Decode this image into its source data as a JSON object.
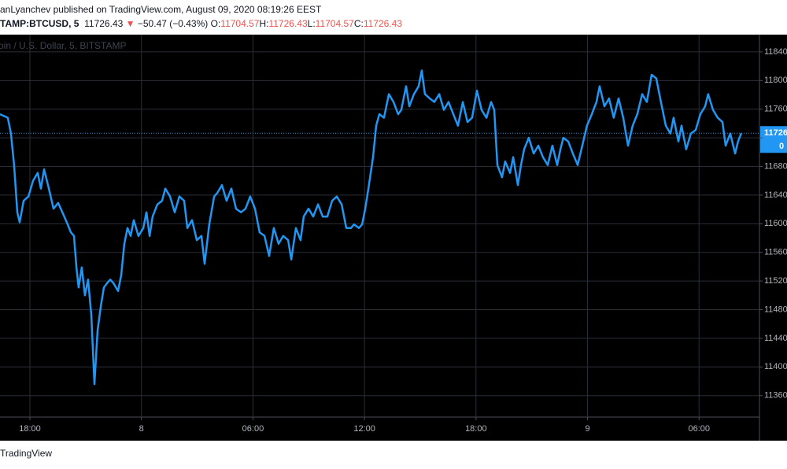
{
  "chart_data": {
    "type": "line",
    "publisher_line": "anLyanchev published on TradingView.com, August 09, 2020 08:19:26 EEST",
    "symbol": "TAMP:BTCUSD, 5",
    "last": "11726.43",
    "direction": "▼",
    "change": "−50.47 (−0.43%)",
    "ohlc": [
      {
        "label": "O:",
        "value": "11704.57"
      },
      {
        "label": "H:",
        "value": "11726.43"
      },
      {
        "label": "L:",
        "value": "11704.57"
      },
      {
        "label": "C:",
        "value": "11726.43"
      }
    ],
    "watermark": "oin / U.S. Dollar, 5, BITSTAMP",
    "countdown": "0",
    "footer": "TradingView",
    "xlim": [
      -1.61,
      39.25
    ],
    "ylim": [
      11330,
      11863
    ],
    "xticks": [
      {
        "value": 0,
        "label": "18:00"
      },
      {
        "value": 6,
        "label": "8"
      },
      {
        "value": 12,
        "label": "06:00"
      },
      {
        "value": 18,
        "label": "12:00"
      },
      {
        "value": 24,
        "label": "18:00"
      },
      {
        "value": 30,
        "label": "9"
      },
      {
        "value": 36,
        "label": "06:00"
      }
    ],
    "yticks": [
      11360,
      11400,
      11440,
      11480,
      11520,
      11560,
      11600,
      11640,
      11680,
      11720,
      11760,
      11800,
      11840
    ],
    "grid": true,
    "series": [
      {
        "color": "#2196f3",
        "x": [
          -1.61,
          -1.19,
          -1.02,
          -0.85,
          -0.68,
          -0.55,
          -0.34,
          -0.08,
          0.17,
          0.42,
          0.59,
          0.76,
          1.02,
          1.27,
          1.52,
          1.78,
          2.03,
          2.2,
          2.37,
          2.5,
          2.62,
          2.79,
          2.96,
          3.13,
          3.3,
          3.47,
          3.64,
          3.81,
          3.98,
          4.15,
          4.32,
          4.49,
          4.74,
          4.91,
          5.08,
          5.25,
          5.42,
          5.59,
          5.84,
          6.1,
          6.27,
          6.44,
          6.6,
          6.86,
          7.11,
          7.28,
          7.54,
          7.79,
          8.04,
          8.3,
          8.47,
          8.72,
          8.98,
          9.23,
          9.4,
          9.65,
          9.91,
          10.08,
          10.33,
          10.58,
          10.84,
          11.09,
          11.35,
          11.6,
          11.85,
          12.11,
          12.36,
          12.62,
          12.87,
          13.12,
          13.38,
          13.63,
          13.89,
          14.06,
          14.31,
          14.56,
          14.73,
          14.99,
          15.24,
          15.5,
          15.75,
          16.0,
          16.26,
          16.51,
          16.77,
          17.02,
          17.27,
          17.44,
          17.7,
          17.87,
          18.04,
          18.21,
          18.46,
          18.63,
          18.8,
          19.05,
          19.31,
          19.56,
          19.81,
          19.98,
          20.24,
          20.41,
          20.66,
          20.91,
          21.08,
          21.25,
          21.51,
          21.76,
          22.02,
          22.27,
          22.52,
          22.78,
          23.03,
          23.29,
          23.54,
          23.79,
          24.05,
          24.3,
          24.56,
          24.81,
          24.98,
          25.15,
          25.4,
          25.57,
          25.83,
          26.0,
          26.25,
          26.42,
          26.59,
          26.84,
          27.1,
          27.35,
          27.6,
          27.86,
          28.11,
          28.37,
          28.54,
          28.7,
          28.96,
          29.21,
          29.47,
          29.72,
          29.97,
          30.23,
          30.48,
          30.65,
          30.91,
          31.16,
          31.41,
          31.67,
          31.92,
          32.18,
          32.43,
          32.68,
          32.94,
          33.19,
          33.45,
          33.7,
          33.95,
          34.21,
          34.46,
          34.63,
          34.89,
          35.06,
          35.31,
          35.56,
          35.82,
          36.07,
          36.33,
          36.49,
          36.75,
          37.0,
          37.26,
          37.43,
          37.68,
          37.94,
          38.1,
          38.27
        ],
        "values": [
          11753,
          11748,
          11726,
          11682,
          11616,
          11602,
          11632,
          11638,
          11660,
          11671,
          11649,
          11676,
          11649,
          11621,
          11629,
          11614,
          11599,
          11588,
          11583,
          11539,
          11511,
          11539,
          11500,
          11522,
          11473,
          11376,
          11451,
          11484,
          11511,
          11517,
          11522,
          11517,
          11506,
          11528,
          11572,
          11594,
          11583,
          11605,
          11583,
          11594,
          11616,
          11583,
          11610,
          11627,
          11632,
          11649,
          11638,
          11616,
          11638,
          11632,
          11594,
          11605,
          11577,
          11583,
          11544,
          11599,
          11638,
          11643,
          11654,
          11632,
          11649,
          11621,
          11616,
          11621,
          11638,
          11621,
          11588,
          11583,
          11555,
          11594,
          11572,
          11583,
          11577,
          11550,
          11594,
          11577,
          11610,
          11621,
          11610,
          11627,
          11610,
          11610,
          11632,
          11638,
          11627,
          11594,
          11594,
          11599,
          11594,
          11599,
          11621,
          11649,
          11693,
          11737,
          11753,
          11748,
          11781,
          11770,
          11753,
          11759,
          11792,
          11764,
          11781,
          11792,
          11814,
          11781,
          11775,
          11770,
          11781,
          11759,
          11770,
          11753,
          11737,
          11770,
          11742,
          11748,
          11786,
          11759,
          11748,
          11770,
          11759,
          11682,
          11665,
          11687,
          11671,
          11693,
          11654,
          11682,
          11704,
          11720,
          11698,
          11709,
          11693,
          11682,
          11709,
          11682,
          11704,
          11720,
          11715,
          11698,
          11682,
          11709,
          11737,
          11753,
          11770,
          11792,
          11764,
          11775,
          11748,
          11775,
          11748,
          11709,
          11737,
          11753,
          11781,
          11770,
          11808,
          11803,
          11770,
          11737,
          11726,
          11748,
          11715,
          11737,
          11704,
          11726,
          11731,
          11753,
          11764,
          11781,
          11759,
          11748,
          11742,
          11709,
          11726,
          11698,
          11715,
          11726.43
        ]
      }
    ]
  }
}
